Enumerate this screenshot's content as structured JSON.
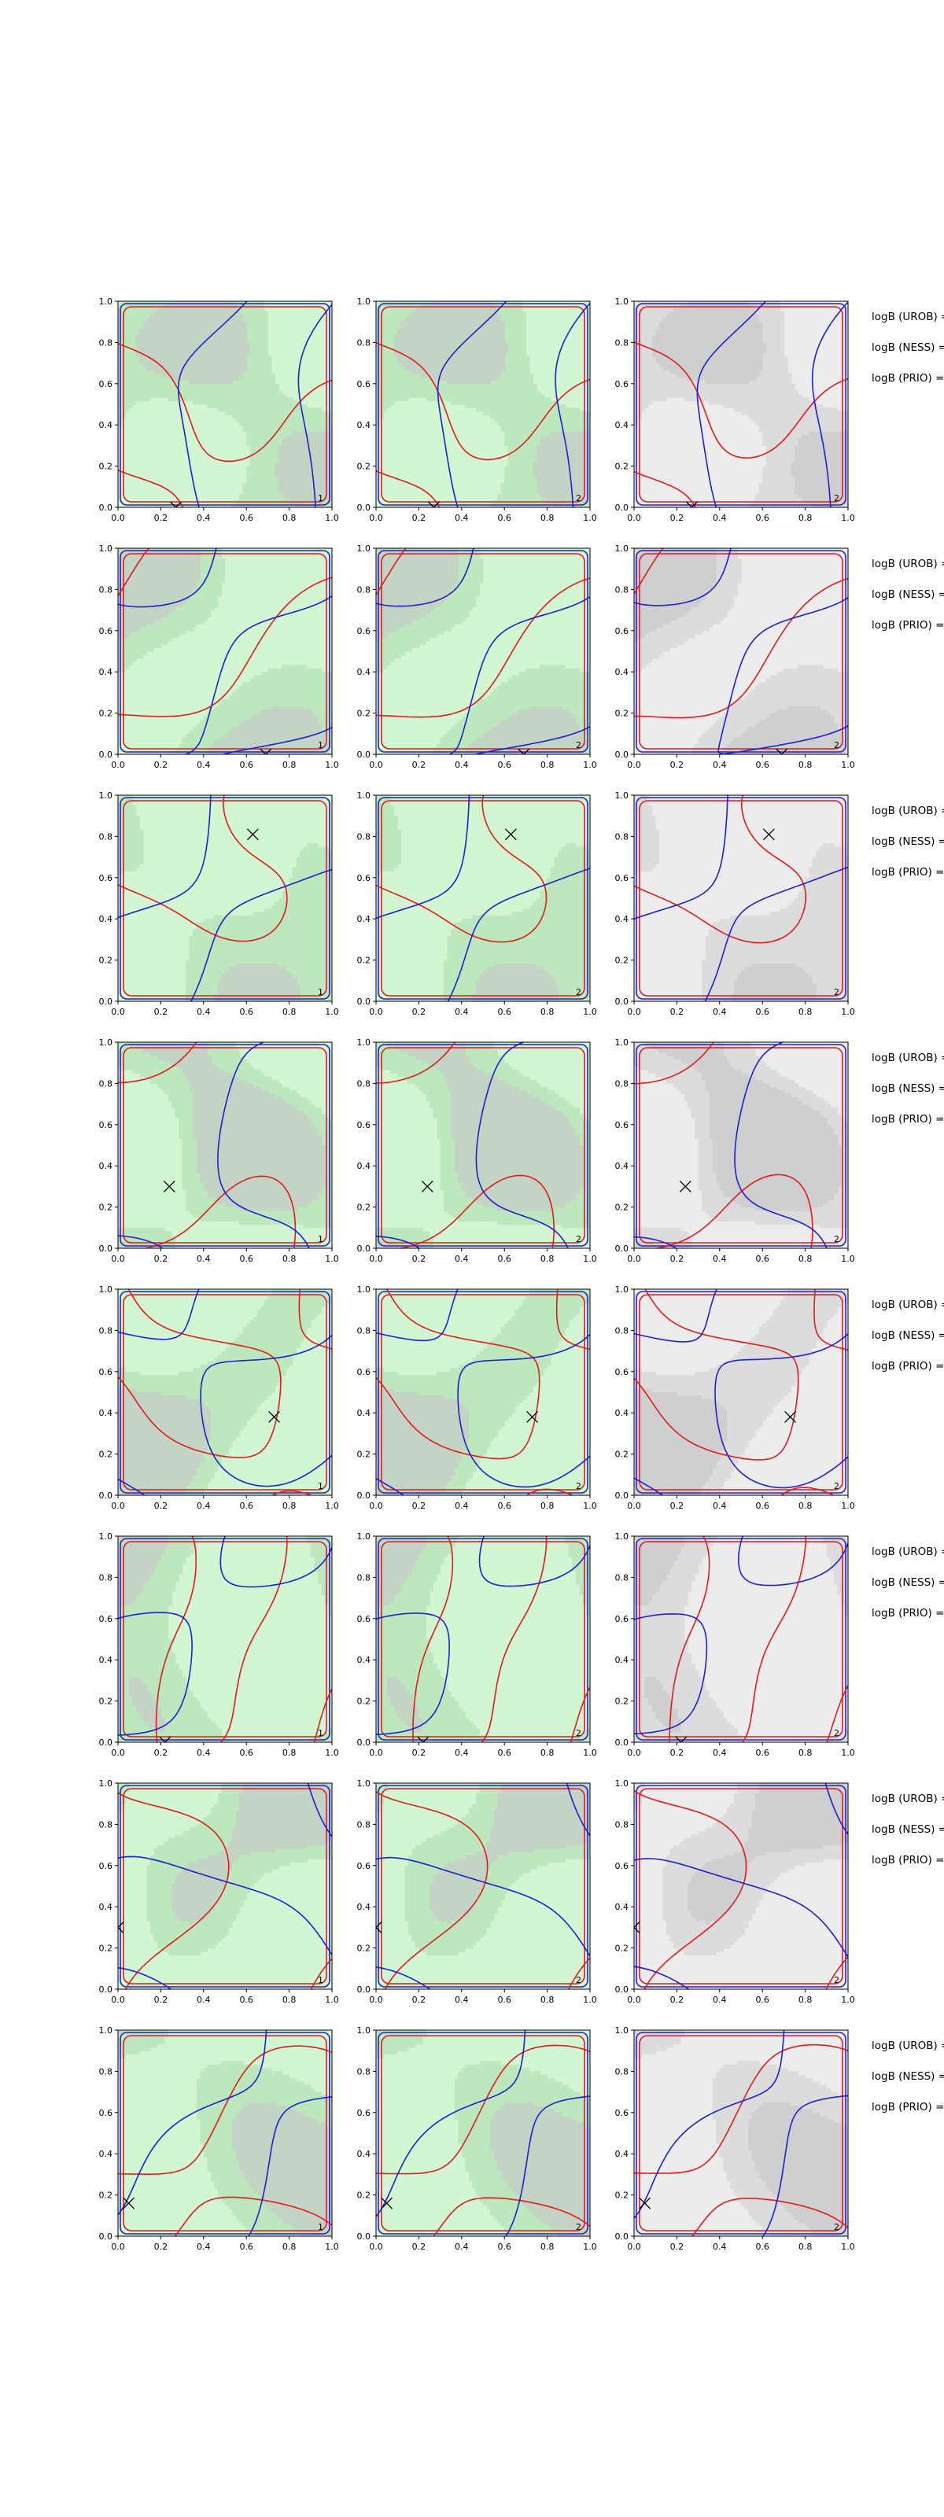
{
  "chart_data": {
    "type": "contour",
    "grid_shape": [
      8,
      3
    ],
    "xlim": [
      0.0,
      1.0
    ],
    "ylim": [
      0.0,
      1.0
    ],
    "ticks": [
      "0.0",
      "0.2",
      "0.4",
      "0.6",
      "0.8",
      "1.0"
    ],
    "panel_labels": [
      "1",
      "2",
      "2"
    ],
    "legend_labels": [
      "logB (UROB) =",
      "logB (NESS) =",
      "logB (PRIO) ="
    ],
    "colors": {
      "red_contour": "#e41a1c",
      "blue_contour": "#1f1fd6",
      "green_fill_light": "#d2f5d2",
      "green_fill_mid": "#bde8bd",
      "green_fill_dark": "#c4d4c4",
      "gray_fill_light": "#ececec",
      "gray_fill_mid": "#dcdcdc",
      "gray_fill_dark": "#cfcfcf",
      "marker": "#000000"
    },
    "rows": [
      {
        "marker": [
          0.27,
          0.0
        ]
      },
      {
        "marker": [
          0.69,
          0.0
        ]
      },
      {
        "marker": [
          0.63,
          0.81
        ]
      },
      {
        "marker": [
          0.24,
          0.3
        ]
      },
      {
        "marker": [
          0.73,
          0.38
        ]
      },
      {
        "marker": [
          0.22,
          0.0
        ]
      },
      {
        "marker": [
          0.0,
          0.3
        ]
      },
      {
        "marker": [
          0.05,
          0.16
        ]
      }
    ]
  }
}
